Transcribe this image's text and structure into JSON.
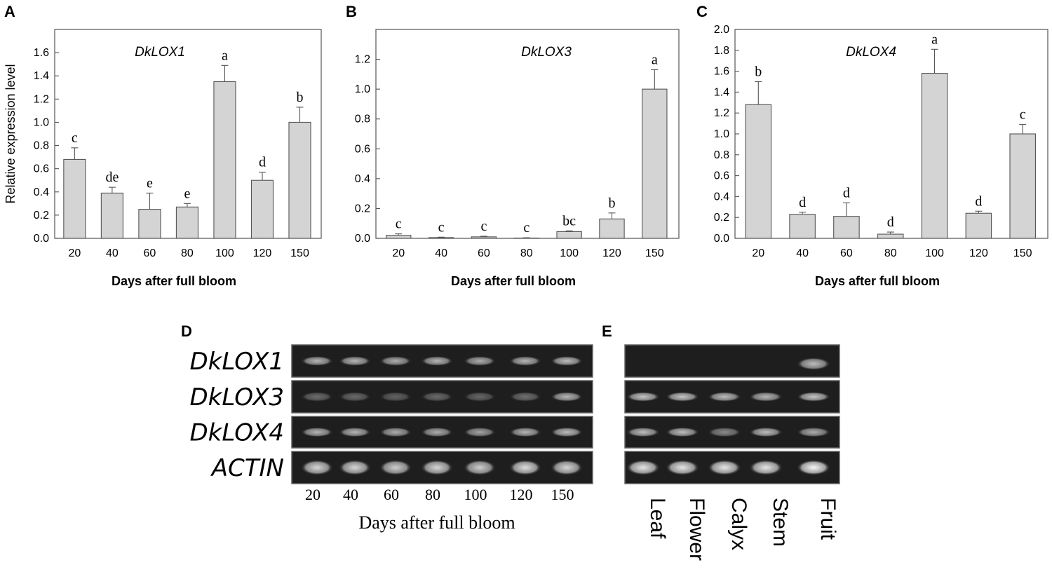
{
  "chart_data": [
    {
      "panel": "A",
      "type": "bar",
      "title": "DkLOX1",
      "categories": [
        "20",
        "40",
        "60",
        "80",
        "100",
        "120",
        "150"
      ],
      "values": [
        0.68,
        0.39,
        0.25,
        0.27,
        1.35,
        0.5,
        1.0
      ],
      "errors": [
        0.1,
        0.05,
        0.14,
        0.03,
        0.14,
        0.07,
        0.13
      ],
      "significance": [
        "c",
        "de",
        "e",
        "e",
        "a",
        "d",
        "b"
      ],
      "xlabel": "Days after full bloom",
      "ylabel": "Relative expression level",
      "ylim": [
        0,
        1.8
      ],
      "yticks": [
        "0.0",
        "0.2",
        "0.4",
        "0.6",
        "0.8",
        "1.0",
        "1.2",
        "1.4",
        "1.6"
      ]
    },
    {
      "panel": "B",
      "type": "bar",
      "title": "DkLOX3",
      "categories": [
        "20",
        "40",
        "60",
        "80",
        "100",
        "120",
        "150"
      ],
      "values": [
        0.02,
        0.005,
        0.01,
        0.002,
        0.045,
        0.13,
        1.0
      ],
      "errors": [
        0.01,
        0.003,
        0.004,
        0.002,
        0.005,
        0.04,
        0.13
      ],
      "significance": [
        "c",
        "c",
        "c",
        "c",
        "bc",
        "b",
        "a"
      ],
      "xlabel": "Days after full bloom",
      "ylabel": "",
      "ylim": [
        0,
        1.4
      ],
      "yticks": [
        "0.0",
        "0.2",
        "0.4",
        "0.6",
        "0.8",
        "1.0",
        "1.2"
      ]
    },
    {
      "panel": "C",
      "type": "bar",
      "title": "DkLOX4",
      "categories": [
        "20",
        "40",
        "60",
        "80",
        "100",
        "120",
        "150"
      ],
      "values": [
        1.28,
        0.23,
        0.21,
        0.04,
        1.58,
        0.24,
        1.0
      ],
      "errors": [
        0.22,
        0.02,
        0.13,
        0.02,
        0.23,
        0.02,
        0.09
      ],
      "significance": [
        "b",
        "d",
        "d",
        "d",
        "a",
        "d",
        "c"
      ],
      "xlabel": "Days after full bloom",
      "ylabel": "",
      "ylim": [
        0,
        2.0
      ],
      "yticks": [
        "0.0",
        "0.2",
        "0.4",
        "0.6",
        "0.8",
        "1.0",
        "1.2",
        "1.4",
        "1.6",
        "1.8",
        "2.0"
      ]
    }
  ],
  "gel_d": {
    "panel": "D",
    "genes": [
      "DkLOX1",
      "DkLOX3",
      "DkLOX4",
      "ACTIN"
    ],
    "lanes": [
      "20",
      "40",
      "60",
      "80",
      "100",
      "120",
      "150"
    ],
    "intensity": [
      [
        0.55,
        0.55,
        0.5,
        0.55,
        0.5,
        0.55,
        0.6
      ],
      [
        0.12,
        0.1,
        0.06,
        0.1,
        0.08,
        0.14,
        0.55
      ],
      [
        0.55,
        0.55,
        0.5,
        0.5,
        0.45,
        0.55,
        0.6
      ],
      [
        0.75,
        0.75,
        0.7,
        0.75,
        0.7,
        0.8,
        0.75
      ]
    ],
    "xlabel": "Days after full bloom"
  },
  "gel_e": {
    "panel": "E",
    "tissues": [
      "Leaf",
      "Flower",
      "Calyx",
      "Stem",
      "Fruit"
    ],
    "intensity": [
      [
        0.0,
        0.0,
        0.0,
        0.0,
        0.6
      ],
      [
        0.65,
        0.65,
        0.6,
        0.55,
        0.65
      ],
      [
        0.6,
        0.6,
        0.3,
        0.6,
        0.5
      ],
      [
        0.85,
        0.85,
        0.85,
        0.85,
        0.95
      ]
    ]
  }
}
